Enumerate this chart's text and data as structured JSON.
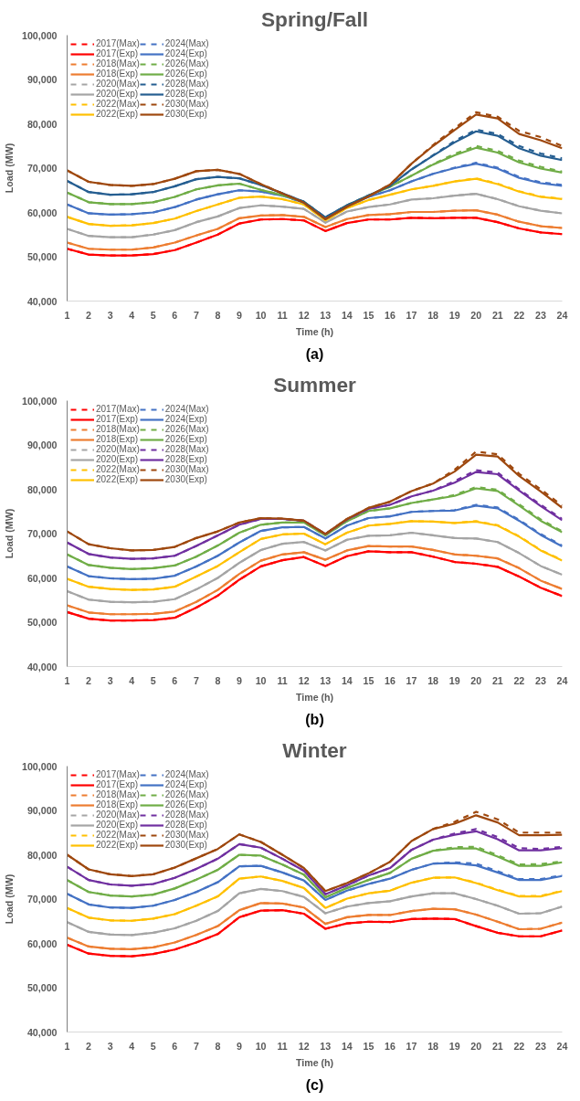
{
  "chart_data": [
    {
      "type": "line",
      "title": "Spring/Fall",
      "xlabel": "Time (h)",
      "ylabel": "Load (MW)",
      "annotations": [
        "(a)"
      ],
      "legend": "top left",
      "grid": false,
      "marker": "none",
      "x": [
        1,
        2,
        3,
        4,
        5,
        6,
        7,
        8,
        9,
        10,
        11,
        12,
        13,
        14,
        15,
        16,
        17,
        18,
        19,
        20,
        21,
        22,
        23,
        24
      ],
      "xlim": [
        1,
        24
      ],
      "xticks": [
        1,
        2,
        3,
        4,
        5,
        6,
        7,
        8,
        9,
        10,
        11,
        12,
        13,
        14,
        15,
        16,
        17,
        18,
        19,
        20,
        21,
        22,
        23,
        24
      ],
      "ylim": [
        40000,
        100000
      ],
      "yticks": [
        {
          "value": 40000,
          "label": "40,000"
        },
        {
          "value": 50000,
          "label": "50,000"
        },
        {
          "value": 60000,
          "label": "60,000"
        },
        {
          "value": 70000,
          "label": "70,000"
        },
        {
          "value": 80000,
          "label": "80,000"
        },
        {
          "value": 90000,
          "label": "90,000"
        },
        {
          "value": 100000,
          "label": "100,000"
        }
      ],
      "series": [
        {
          "name": "2017(Max)",
          "color": "#ff0000",
          "line_style": "dashed",
          "values": [
            51800,
            50500,
            50300,
            50300,
            50600,
            51500,
            53200,
            55000,
            57500,
            58400,
            58500,
            58200,
            55800,
            57600,
            58400,
            58400,
            58800,
            58700,
            58800,
            58800,
            57800,
            56400,
            55500,
            55100
          ]
        },
        {
          "name": "2017(Exp)",
          "color": "#ff0000",
          "line_style": "solid",
          "values": [
            51800,
            50500,
            50300,
            50300,
            50600,
            51500,
            53200,
            55000,
            57500,
            58400,
            58500,
            58200,
            55800,
            57600,
            58400,
            58400,
            58800,
            58700,
            58800,
            58800,
            57800,
            56400,
            55500,
            55100
          ]
        },
        {
          "name": "2018(Max)",
          "color": "#ed7d31",
          "line_style": "dashed",
          "values": [
            53200,
            51800,
            51600,
            51600,
            52100,
            53200,
            54800,
            56300,
            58700,
            59300,
            59400,
            59000,
            56700,
            58500,
            59400,
            59600,
            60100,
            60100,
            60400,
            60500,
            59500,
            57900,
            56900,
            56500
          ]
        },
        {
          "name": "2018(Exp)",
          "color": "#ed7d31",
          "line_style": "solid",
          "values": [
            53200,
            51800,
            51600,
            51600,
            52100,
            53200,
            54800,
            56300,
            58700,
            59300,
            59400,
            59000,
            56700,
            58500,
            59400,
            59600,
            60100,
            60100,
            60400,
            60500,
            59500,
            57900,
            56900,
            56500
          ]
        },
        {
          "name": "2020(Max)",
          "color": "#a5a5a5",
          "line_style": "dashed",
          "values": [
            56300,
            54700,
            54400,
            54400,
            55000,
            56000,
            57800,
            59100,
            61000,
            61600,
            61300,
            60800,
            57700,
            60200,
            61200,
            61800,
            62900,
            63200,
            63800,
            64200,
            63000,
            61400,
            60400,
            59800
          ]
        },
        {
          "name": "2020(Exp)",
          "color": "#a5a5a5",
          "line_style": "solid",
          "values": [
            56300,
            54700,
            54400,
            54400,
            55000,
            56000,
            57800,
            59100,
            61000,
            61600,
            61300,
            60800,
            57700,
            60200,
            61200,
            61800,
            62900,
            63200,
            63800,
            64200,
            63000,
            61400,
            60400,
            59800
          ]
        },
        {
          "name": "2022(Max)",
          "color": "#ffc000",
          "line_style": "dashed",
          "values": [
            59000,
            57400,
            57000,
            57100,
            57600,
            58600,
            60300,
            61800,
            63300,
            63600,
            63000,
            61800,
            58200,
            61000,
            62800,
            64000,
            65200,
            66000,
            67000,
            67700,
            66500,
            64800,
            63600,
            63100
          ]
        },
        {
          "name": "2022(Exp)",
          "color": "#ffc000",
          "line_style": "solid",
          "values": [
            59000,
            57400,
            57000,
            57100,
            57600,
            58600,
            60300,
            61800,
            63300,
            63600,
            63000,
            61800,
            58200,
            61000,
            62800,
            64000,
            65200,
            66000,
            67000,
            67600,
            66400,
            64700,
            63500,
            63000
          ]
        },
        {
          "name": "2024(Max)",
          "color": "#4472c4",
          "line_style": "dashed",
          "values": [
            61800,
            59800,
            59500,
            59600,
            60000,
            61200,
            62900,
            64100,
            65000,
            64700,
            63800,
            62200,
            58500,
            61400,
            63500,
            65000,
            67000,
            68700,
            70100,
            71200,
            70100,
            68000,
            66800,
            66200
          ]
        },
        {
          "name": "2024(Exp)",
          "color": "#4472c4",
          "line_style": "solid",
          "values": [
            61800,
            59800,
            59500,
            59600,
            60000,
            61200,
            62900,
            64100,
            65000,
            64700,
            63800,
            62200,
            58500,
            61400,
            63500,
            65000,
            67000,
            68700,
            70000,
            71000,
            69900,
            67800,
            66600,
            66000
          ]
        },
        {
          "name": "2026(Max)",
          "color": "#70ad47",
          "line_style": "dashed",
          "values": [
            64500,
            62300,
            61900,
            61900,
            62300,
            63500,
            65200,
            66100,
            66500,
            65100,
            63900,
            62400,
            58800,
            61600,
            63800,
            65800,
            68300,
            70900,
            73200,
            75000,
            73900,
            71700,
            70300,
            69200
          ]
        },
        {
          "name": "2026(Exp)",
          "color": "#70ad47",
          "line_style": "solid",
          "values": [
            64500,
            62300,
            61900,
            61900,
            62300,
            63500,
            65200,
            66100,
            66500,
            65100,
            63900,
            62400,
            58800,
            61600,
            63800,
            65800,
            68300,
            70800,
            72900,
            74600,
            73500,
            71300,
            69900,
            69000
          ]
        },
        {
          "name": "2028(Max)",
          "color": "#255e91",
          "line_style": "dashed",
          "values": [
            67100,
            64600,
            64000,
            64100,
            64600,
            65900,
            67500,
            68000,
            67700,
            66200,
            64300,
            62400,
            58900,
            61600,
            63800,
            66000,
            69700,
            72900,
            76100,
            78700,
            77700,
            75000,
            73300,
            72200
          ]
        },
        {
          "name": "2028(Exp)",
          "color": "#255e91",
          "line_style": "solid",
          "values": [
            67100,
            64600,
            64000,
            64100,
            64600,
            65900,
            67500,
            68000,
            67700,
            66200,
            64300,
            62400,
            58900,
            61600,
            63800,
            66000,
            69700,
            72800,
            75800,
            78300,
            77300,
            74500,
            72800,
            71800
          ]
        },
        {
          "name": "2030(Max)",
          "color": "#9e480e",
          "line_style": "dashed",
          "values": [
            69500,
            66900,
            66200,
            66000,
            66400,
            67600,
            69300,
            69600,
            68700,
            66400,
            64300,
            62200,
            58500,
            61300,
            63600,
            66300,
            71000,
            75200,
            79000,
            82600,
            81600,
            78400,
            77000,
            75000
          ]
        },
        {
          "name": "2030(Exp)",
          "color": "#9e480e",
          "line_style": "solid",
          "values": [
            69500,
            66900,
            66200,
            66000,
            66400,
            67600,
            69300,
            69600,
            68700,
            66400,
            64300,
            62200,
            58500,
            61300,
            63600,
            66300,
            71000,
            75000,
            78600,
            82100,
            81200,
            77700,
            76300,
            74500
          ]
        }
      ]
    },
    {
      "type": "line",
      "title": "Summer",
      "xlabel": "Time (h)",
      "ylabel": "Load (MW)",
      "annotations": [
        "(b)"
      ],
      "legend": "top left",
      "grid": false,
      "marker": "none",
      "x": [
        1,
        2,
        3,
        4,
        5,
        6,
        7,
        8,
        9,
        10,
        11,
        12,
        13,
        14,
        15,
        16,
        17,
        18,
        19,
        20,
        21,
        22,
        23,
        24
      ],
      "xlim": [
        1,
        24
      ],
      "xticks": [
        1,
        2,
        3,
        4,
        5,
        6,
        7,
        8,
        9,
        10,
        11,
        12,
        13,
        14,
        15,
        16,
        17,
        18,
        19,
        20,
        21,
        22,
        23,
        24
      ],
      "ylim": [
        40000,
        100000
      ],
      "yticks": [
        {
          "value": 40000,
          "label": "40,000"
        },
        {
          "value": 50000,
          "label": "50,000"
        },
        {
          "value": 60000,
          "label": "60,000"
        },
        {
          "value": 70000,
          "label": "70,000"
        },
        {
          "value": 80000,
          "label": "80,000"
        },
        {
          "value": 90000,
          "label": "90,000"
        },
        {
          "value": 100000,
          "label": "100,000"
        }
      ],
      "series": [
        {
          "name": "2017(Max)",
          "color": "#ff0000",
          "line_style": "dashed",
          "values": [
            52300,
            50800,
            50400,
            50400,
            50500,
            51000,
            53300,
            56000,
            59600,
            62600,
            64000,
            64700,
            62700,
            64900,
            66000,
            65800,
            65800,
            64800,
            63600,
            63200,
            62500,
            60300,
            57800,
            55900
          ]
        },
        {
          "name": "2017(Exp)",
          "color": "#ff0000",
          "line_style": "solid",
          "values": [
            52300,
            50800,
            50400,
            50400,
            50500,
            51000,
            53300,
            56000,
            59600,
            62600,
            64000,
            64700,
            62700,
            64900,
            66000,
            65800,
            65800,
            64800,
            63600,
            63200,
            62500,
            60300,
            57800,
            55900
          ]
        },
        {
          "name": "2018(Max)",
          "color": "#ed7d31",
          "line_style": "dashed",
          "values": [
            53800,
            52200,
            51800,
            51800,
            51900,
            52400,
            54600,
            57300,
            60900,
            63900,
            65300,
            65800,
            64100,
            66200,
            67200,
            67100,
            67100,
            66300,
            65300,
            65000,
            64400,
            62200,
            59400,
            57500
          ]
        },
        {
          "name": "2018(Exp)",
          "color": "#ed7d31",
          "line_style": "solid",
          "values": [
            53800,
            52200,
            51800,
            51800,
            51900,
            52400,
            54600,
            57300,
            60900,
            63900,
            65300,
            65800,
            64100,
            66200,
            67200,
            67100,
            67100,
            66300,
            65300,
            65000,
            64400,
            62200,
            59400,
            57500
          ]
        },
        {
          "name": "2020(Max)",
          "color": "#a5a5a5",
          "line_style": "dashed",
          "values": [
            57000,
            55100,
            54600,
            54500,
            54600,
            55200,
            57400,
            60000,
            63400,
            66300,
            67700,
            68100,
            66200,
            68600,
            69500,
            69600,
            70200,
            69600,
            69000,
            68900,
            68100,
            65600,
            62700,
            60700
          ]
        },
        {
          "name": "2020(Exp)",
          "color": "#a5a5a5",
          "line_style": "solid",
          "values": [
            57000,
            55100,
            54600,
            54500,
            54600,
            55200,
            57400,
            60000,
            63400,
            66300,
            67700,
            68100,
            66200,
            68600,
            69500,
            69600,
            70200,
            69600,
            69000,
            68900,
            68100,
            65600,
            62700,
            60700
          ]
        },
        {
          "name": "2022(Max)",
          "color": "#ffc000",
          "line_style": "dashed",
          "values": [
            59800,
            58000,
            57500,
            57300,
            57400,
            58000,
            60300,
            62700,
            65800,
            68800,
            69800,
            70000,
            67600,
            70200,
            71800,
            72200,
            72800,
            72700,
            72400,
            72800,
            71900,
            69400,
            66300,
            64000
          ]
        },
        {
          "name": "2022(Exp)",
          "color": "#ffc000",
          "line_style": "solid",
          "values": [
            59800,
            58000,
            57500,
            57300,
            57400,
            58000,
            60300,
            62700,
            65800,
            68800,
            69800,
            70000,
            67600,
            70200,
            71800,
            72200,
            72800,
            72700,
            72400,
            72700,
            71800,
            69300,
            66200,
            63900
          ]
        },
        {
          "name": "2024(Max)",
          "color": "#4472c4",
          "line_style": "dashed",
          "values": [
            62600,
            60400,
            59900,
            59700,
            59800,
            60500,
            62600,
            65000,
            68000,
            70600,
            71400,
            71500,
            68900,
            71800,
            73500,
            73900,
            74900,
            75100,
            75300,
            76500,
            75900,
            73100,
            69900,
            67300
          ]
        },
        {
          "name": "2024(Exp)",
          "color": "#4472c4",
          "line_style": "solid",
          "values": [
            62600,
            60400,
            59900,
            59700,
            59800,
            60500,
            62600,
            65000,
            68000,
            70600,
            71400,
            71500,
            68900,
            71800,
            73500,
            73900,
            74900,
            75100,
            75200,
            76300,
            75700,
            72900,
            69700,
            67100
          ]
        },
        {
          "name": "2026(Max)",
          "color": "#70ad47",
          "line_style": "dashed",
          "values": [
            65300,
            62900,
            62300,
            62000,
            62200,
            62800,
            64800,
            67300,
            70200,
            72000,
            72500,
            72500,
            69600,
            72800,
            75100,
            75700,
            76900,
            77700,
            78700,
            80500,
            79900,
            76600,
            73200,
            70500
          ]
        },
        {
          "name": "2026(Exp)",
          "color": "#70ad47",
          "line_style": "solid",
          "values": [
            65300,
            62900,
            62300,
            62000,
            62200,
            62800,
            64800,
            67300,
            70200,
            72000,
            72500,
            72500,
            69600,
            72800,
            75100,
            75700,
            76900,
            77700,
            78500,
            80200,
            79600,
            76300,
            72900,
            70300
          ]
        },
        {
          "name": "2028(Max)",
          "color": "#7030a0",
          "line_style": "dashed",
          "values": [
            68000,
            65400,
            64600,
            64300,
            64400,
            65000,
            67200,
            69600,
            72000,
            73300,
            73300,
            72900,
            69900,
            73200,
            75600,
            76500,
            78400,
            79700,
            81800,
            84300,
            83800,
            80000,
            76500,
            73300
          ]
        },
        {
          "name": "2028(Exp)",
          "color": "#7030a0",
          "line_style": "solid",
          "values": [
            68000,
            65400,
            64600,
            64300,
            64400,
            65000,
            67200,
            69600,
            72000,
            73300,
            73300,
            72900,
            69900,
            73200,
            75600,
            76500,
            78400,
            79700,
            81500,
            83900,
            83400,
            79700,
            76200,
            73000
          ]
        },
        {
          "name": "2030(Max)",
          "color": "#9e480e",
          "line_style": "dashed",
          "values": [
            70500,
            67600,
            66700,
            66200,
            66300,
            67000,
            69000,
            70500,
            72500,
            73500,
            73400,
            72900,
            69900,
            73300,
            75800,
            77200,
            79600,
            81300,
            84400,
            88500,
            87900,
            83500,
            80000,
            76300
          ]
        },
        {
          "name": "2030(Exp)",
          "color": "#9e480e",
          "line_style": "solid",
          "values": [
            70500,
            67600,
            66700,
            66200,
            66300,
            67000,
            69000,
            70500,
            72500,
            73500,
            73400,
            72900,
            69900,
            73300,
            75800,
            77200,
            79600,
            81300,
            84000,
            87800,
            87400,
            83000,
            79500,
            75800
          ]
        }
      ]
    },
    {
      "type": "line",
      "title": "Winter",
      "xlabel": "Time (h)",
      "ylabel": "Load (MW)",
      "annotations": [
        "(c)"
      ],
      "legend": "top left",
      "grid": false,
      "marker": "none",
      "x": [
        1,
        2,
        3,
        4,
        5,
        6,
        7,
        8,
        9,
        10,
        11,
        12,
        13,
        14,
        15,
        16,
        17,
        18,
        19,
        20,
        21,
        22,
        23,
        24
      ],
      "xlim": [
        1,
        24
      ],
      "xticks": [
        1,
        2,
        3,
        4,
        5,
        6,
        7,
        8,
        9,
        10,
        11,
        12,
        13,
        14,
        15,
        16,
        17,
        18,
        19,
        20,
        21,
        22,
        23,
        24
      ],
      "ylim": [
        40000,
        100000
      ],
      "yticks": [
        {
          "value": 40000,
          "label": "40,000"
        },
        {
          "value": 50000,
          "label": "50,000"
        },
        {
          "value": 60000,
          "label": "60,000"
        },
        {
          "value": 70000,
          "label": "70,000"
        },
        {
          "value": 80000,
          "label": "80,000"
        },
        {
          "value": 90000,
          "label": "90,000"
        },
        {
          "value": 100000,
          "label": "100,000"
        }
      ],
      "series": [
        {
          "name": "2017(Max)",
          "color": "#ff0000",
          "line_style": "dashed",
          "values": [
            59700,
            57700,
            57200,
            57100,
            57600,
            58600,
            60200,
            62100,
            65900,
            67400,
            67500,
            66700,
            63300,
            64500,
            64900,
            64800,
            65500,
            65600,
            65500,
            63900,
            62400,
            61600,
            61600,
            62900
          ]
        },
        {
          "name": "2017(Exp)",
          "color": "#ff0000",
          "line_style": "solid",
          "values": [
            59700,
            57700,
            57200,
            57100,
            57600,
            58600,
            60200,
            62100,
            65900,
            67400,
            67500,
            66700,
            63300,
            64500,
            64900,
            64800,
            65500,
            65600,
            65500,
            63900,
            62400,
            61600,
            61600,
            62900
          ]
        },
        {
          "name": "2018(Max)",
          "color": "#ed7d31",
          "line_style": "dashed",
          "values": [
            61300,
            59300,
            58800,
            58700,
            59100,
            60200,
            61900,
            63900,
            67500,
            69100,
            69000,
            68100,
            64400,
            65900,
            66400,
            66400,
            67300,
            67800,
            67700,
            66500,
            64900,
            63200,
            63300,
            64700
          ]
        },
        {
          "name": "2018(Exp)",
          "color": "#ed7d31",
          "line_style": "solid",
          "values": [
            61300,
            59300,
            58800,
            58700,
            59100,
            60200,
            61900,
            63900,
            67500,
            69100,
            69000,
            68100,
            64400,
            65900,
            66400,
            66400,
            67300,
            67800,
            67700,
            66500,
            64900,
            63200,
            63300,
            64700
          ]
        },
        {
          "name": "2020(Max)",
          "color": "#a5a5a5",
          "line_style": "dashed",
          "values": [
            64800,
            62600,
            62000,
            61900,
            62400,
            63400,
            65100,
            67300,
            71300,
            72300,
            71800,
            70500,
            66800,
            68300,
            69100,
            69500,
            70600,
            71300,
            71300,
            70000,
            68500,
            66700,
            66800,
            68300
          ]
        },
        {
          "name": "2020(Exp)",
          "color": "#a5a5a5",
          "line_style": "solid",
          "values": [
            64800,
            62600,
            62000,
            61900,
            62400,
            63400,
            65100,
            67300,
            71300,
            72300,
            71800,
            70500,
            66800,
            68300,
            69100,
            69500,
            70600,
            71300,
            71300,
            70000,
            68500,
            66700,
            66800,
            68300
          ]
        },
        {
          "name": "2022(Max)",
          "color": "#ffc000",
          "line_style": "dashed",
          "values": [
            68000,
            65800,
            65200,
            65100,
            65600,
            66600,
            68500,
            70600,
            74600,
            75100,
            74100,
            72500,
            68000,
            70100,
            71300,
            71900,
            73700,
            74800,
            74900,
            73700,
            72100,
            70700,
            70700,
            71900
          ]
        },
        {
          "name": "2022(Exp)",
          "color": "#ffc000",
          "line_style": "solid",
          "values": [
            68000,
            65800,
            65200,
            65100,
            65600,
            66600,
            68500,
            70600,
            74600,
            75100,
            74100,
            72500,
            68000,
            70100,
            71300,
            71900,
            73700,
            74800,
            74900,
            73600,
            72000,
            70600,
            70600,
            71800
          ]
        },
        {
          "name": "2024(Max)",
          "color": "#4472c4",
          "line_style": "dashed",
          "values": [
            71200,
            68800,
            68100,
            68000,
            68500,
            69800,
            71600,
            73800,
            77400,
            77500,
            76000,
            74200,
            69800,
            71900,
            73400,
            74600,
            76600,
            78000,
            78300,
            78000,
            76300,
            74500,
            74500,
            75400
          ]
        },
        {
          "name": "2024(Exp)",
          "color": "#4472c4",
          "line_style": "solid",
          "values": [
            71200,
            68800,
            68100,
            68000,
            68500,
            69800,
            71600,
            73800,
            77400,
            77500,
            76000,
            74200,
            69800,
            71900,
            73400,
            74600,
            76600,
            78000,
            78100,
            77600,
            76000,
            74300,
            74300,
            75200
          ]
        },
        {
          "name": "2026(Max)",
          "color": "#70ad47",
          "line_style": "dashed",
          "values": [
            74300,
            71600,
            70800,
            70600,
            71000,
            72400,
            74400,
            76600,
            80000,
            79800,
            77800,
            75500,
            70400,
            72500,
            74300,
            75900,
            79100,
            80900,
            81700,
            81800,
            79900,
            77800,
            77900,
            78500
          ]
        },
        {
          "name": "2026(Exp)",
          "color": "#70ad47",
          "line_style": "solid",
          "values": [
            74300,
            71600,
            70800,
            70600,
            71000,
            72400,
            74400,
            76600,
            80000,
            79800,
            77800,
            75500,
            70400,
            72500,
            74300,
            75900,
            79100,
            80900,
            81400,
            81400,
            79600,
            77500,
            77500,
            78300
          ]
        },
        {
          "name": "2028(Max)",
          "color": "#7030a0",
          "line_style": "dashed",
          "values": [
            77300,
            74300,
            73300,
            73000,
            73400,
            74800,
            76800,
            79100,
            82400,
            81600,
            79100,
            76400,
            71100,
            73100,
            75300,
            77000,
            81100,
            83400,
            84800,
            85800,
            84000,
            81500,
            81300,
            81800
          ]
        },
        {
          "name": "2028(Exp)",
          "color": "#7030a0",
          "line_style": "solid",
          "values": [
            77300,
            74300,
            73300,
            73000,
            73400,
            74800,
            76800,
            79100,
            82400,
            81600,
            79100,
            76400,
            71100,
            73100,
            75300,
            77000,
            81100,
            83400,
            84500,
            85300,
            83500,
            81000,
            81000,
            81500
          ]
        },
        {
          "name": "2030(Max)",
          "color": "#9e480e",
          "line_style": "dashed",
          "values": [
            80000,
            76700,
            75600,
            75200,
            75600,
            77100,
            79200,
            81300,
            84600,
            82900,
            80000,
            77000,
            71800,
            73600,
            75800,
            78400,
            83100,
            85800,
            87400,
            89700,
            88000,
            85000,
            85000,
            85000
          ]
        },
        {
          "name": "2030(Exp)",
          "color": "#9e480e",
          "line_style": "solid",
          "values": [
            80000,
            76700,
            75600,
            75200,
            75600,
            77100,
            79200,
            81300,
            84600,
            82900,
            80000,
            77000,
            71800,
            73600,
            75800,
            78400,
            83100,
            85800,
            87000,
            88900,
            87300,
            84400,
            84400,
            84500
          ]
        }
      ]
    }
  ]
}
